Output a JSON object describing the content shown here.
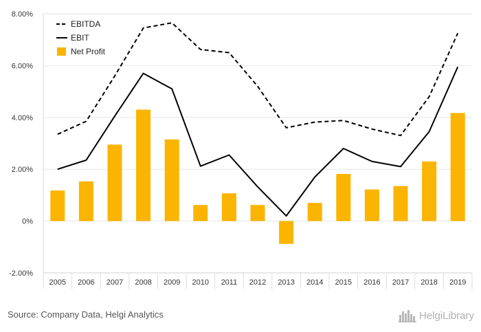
{
  "chart_data": {
    "type": "bar+line",
    "x": [
      "2005",
      "2006",
      "2007",
      "2008",
      "2009",
      "2010",
      "2011",
      "2012",
      "2013",
      "2014",
      "2015",
      "2016",
      "2017",
      "2018",
      "2019"
    ],
    "y_ticks": [
      "8.00%",
      "6.00%",
      "4.00%",
      "2.00%",
      "0%",
      "-2.00%"
    ],
    "ylim": [
      -2.0,
      8.0
    ],
    "grid": true,
    "legend_position": "top-left",
    "series": [
      {
        "name": "EBITDA",
        "type": "line",
        "style": "dashed",
        "color": "#000000",
        "values": [
          3.35,
          3.85,
          5.6,
          7.45,
          7.65,
          6.62,
          6.5,
          5.2,
          3.6,
          3.82,
          3.88,
          3.55,
          3.3,
          4.8,
          7.25
        ]
      },
      {
        "name": "EBIT",
        "type": "line",
        "style": "solid",
        "color": "#000000",
        "values": [
          2.0,
          2.35,
          4.05,
          5.7,
          5.1,
          2.12,
          2.55,
          1.32,
          0.2,
          1.7,
          2.8,
          2.3,
          2.1,
          3.45,
          5.95
        ]
      },
      {
        "name": "Net Profit",
        "type": "bar",
        "color": "#fbb400",
        "values": [
          1.18,
          1.53,
          2.95,
          4.3,
          3.15,
          0.62,
          1.07,
          0.62,
          -0.88,
          0.7,
          1.82,
          1.22,
          1.35,
          2.3,
          4.17
        ]
      }
    ]
  },
  "footer": {
    "source": "Source: Company Data, Helgi Analytics",
    "logo_text": "HelgiLibrary",
    "logo_icon": "city-skyline-icon"
  }
}
